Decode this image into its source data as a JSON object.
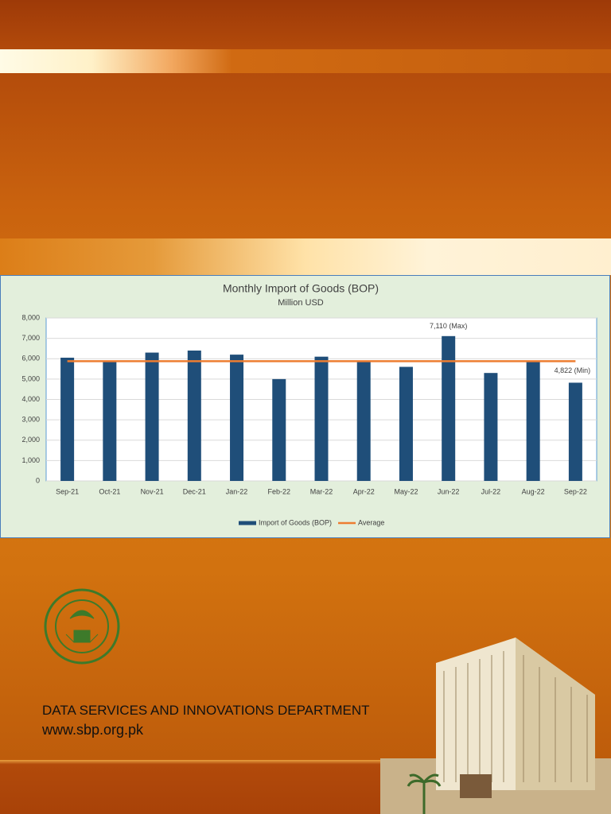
{
  "chart_data": {
    "type": "bar",
    "title": "Monthly Import of Goods (BOP)",
    "subtitle": "Million USD",
    "categories": [
      "Sep-21",
      "Oct-21",
      "Nov-21",
      "Dec-21",
      "Jan-22",
      "Feb-22",
      "Mar-22",
      "Apr-22",
      "May-22",
      "Jun-22",
      "Jul-22",
      "Aug-22",
      "Sep-22"
    ],
    "series": [
      {
        "name": "Import of Goods (BOP)",
        "type": "bar",
        "color": "#1f4e79",
        "values": [
          6050,
          5850,
          6300,
          6400,
          6200,
          5000,
          6100,
          5850,
          5600,
          7110,
          5300,
          5850,
          4822
        ],
        "value_labels": [
          null,
          null,
          null,
          null,
          null,
          null,
          null,
          null,
          null,
          "7,110 (Max)",
          null,
          null,
          "4,822 (Min)"
        ]
      },
      {
        "name": "Average",
        "type": "line",
        "color": "#ed7d31",
        "values": [
          5879,
          5879,
          5879,
          5879,
          5879,
          5879,
          5879,
          5879,
          5879,
          5879,
          5879,
          5879,
          5879
        ]
      }
    ],
    "ylim": [
      0,
      8000
    ],
    "yticks": [
      0,
      {
        "value": 1000,
        "label": "1,000"
      },
      {
        "value": 2000,
        "label": "2,000"
      },
      {
        "value": 3000,
        "label": "3,000"
      },
      {
        "value": 4000,
        "label": "4,000"
      },
      {
        "value": 5000,
        "label": "5,000"
      },
      {
        "value": 6000,
        "label": "6,000"
      },
      {
        "value": 7000,
        "label": "7,000"
      },
      {
        "value": 8000,
        "label": "8,000"
      }
    ],
    "grid": true,
    "legend": "bottom"
  },
  "footer": {
    "department": "DATA SERVICES AND INNOVATIONS DEPARTMENT",
    "url": "www.sbp.org.pk"
  }
}
